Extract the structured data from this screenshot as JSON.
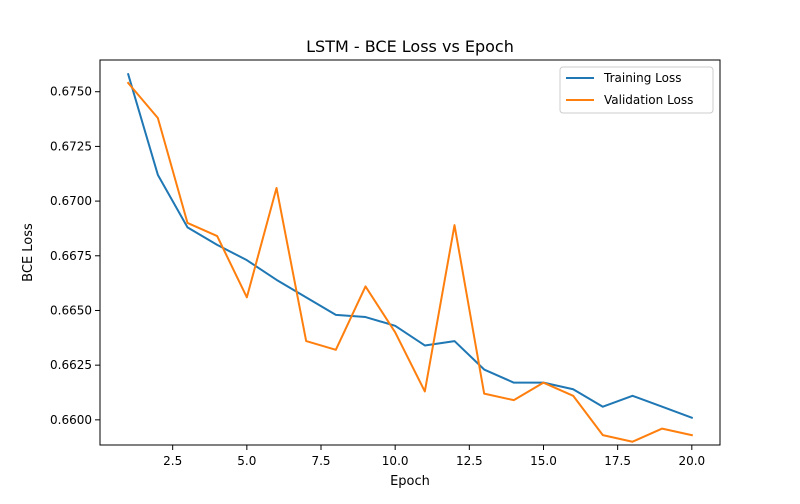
{
  "chart_data": {
    "type": "line",
    "title": "LSTM - BCE Loss vs Epoch",
    "xlabel": "Epoch",
    "ylabel": "BCE Loss",
    "xlim": [
      0.05,
      20.95
    ],
    "ylim": [
      0.65885,
      0.67645
    ],
    "x_ticks": [
      2.5,
      5.0,
      7.5,
      10.0,
      12.5,
      15.0,
      17.5,
      20.0
    ],
    "x_tick_labels": [
      "2.5",
      "5.0",
      "7.5",
      "10.0",
      "12.5",
      "15.0",
      "17.5",
      "20.0"
    ],
    "y_ticks": [
      0.66,
      0.6625,
      0.665,
      0.6675,
      0.67,
      0.6725,
      0.675
    ],
    "y_tick_labels": [
      "0.6600",
      "0.6625",
      "0.6650",
      "0.6675",
      "0.6700",
      "0.6725",
      "0.6750"
    ],
    "grid": false,
    "legend_position": "top-right",
    "x": [
      1,
      2,
      3,
      4,
      5,
      6,
      7,
      8,
      9,
      10,
      11,
      12,
      13,
      14,
      15,
      16,
      17,
      18,
      19,
      20
    ],
    "series": [
      {
        "name": "Training Loss",
        "color": "#1f77b4",
        "values": [
          0.6758,
          0.6712,
          0.6688,
          0.668,
          0.6673,
          0.6664,
          0.6656,
          0.6648,
          0.6647,
          0.6643,
          0.6634,
          0.6636,
          0.6623,
          0.6617,
          0.6617,
          0.6614,
          0.6606,
          0.6611,
          0.6606,
          0.6601
        ]
      },
      {
        "name": "Validation Loss",
        "color": "#ff7f0e",
        "values": [
          0.6754,
          0.6738,
          0.669,
          0.6684,
          0.6656,
          0.6706,
          0.6636,
          0.6632,
          0.6661,
          0.664,
          0.6613,
          0.6689,
          0.6612,
          0.6609,
          0.6617,
          0.6611,
          0.6593,
          0.659,
          0.6596,
          0.6593
        ]
      }
    ]
  }
}
